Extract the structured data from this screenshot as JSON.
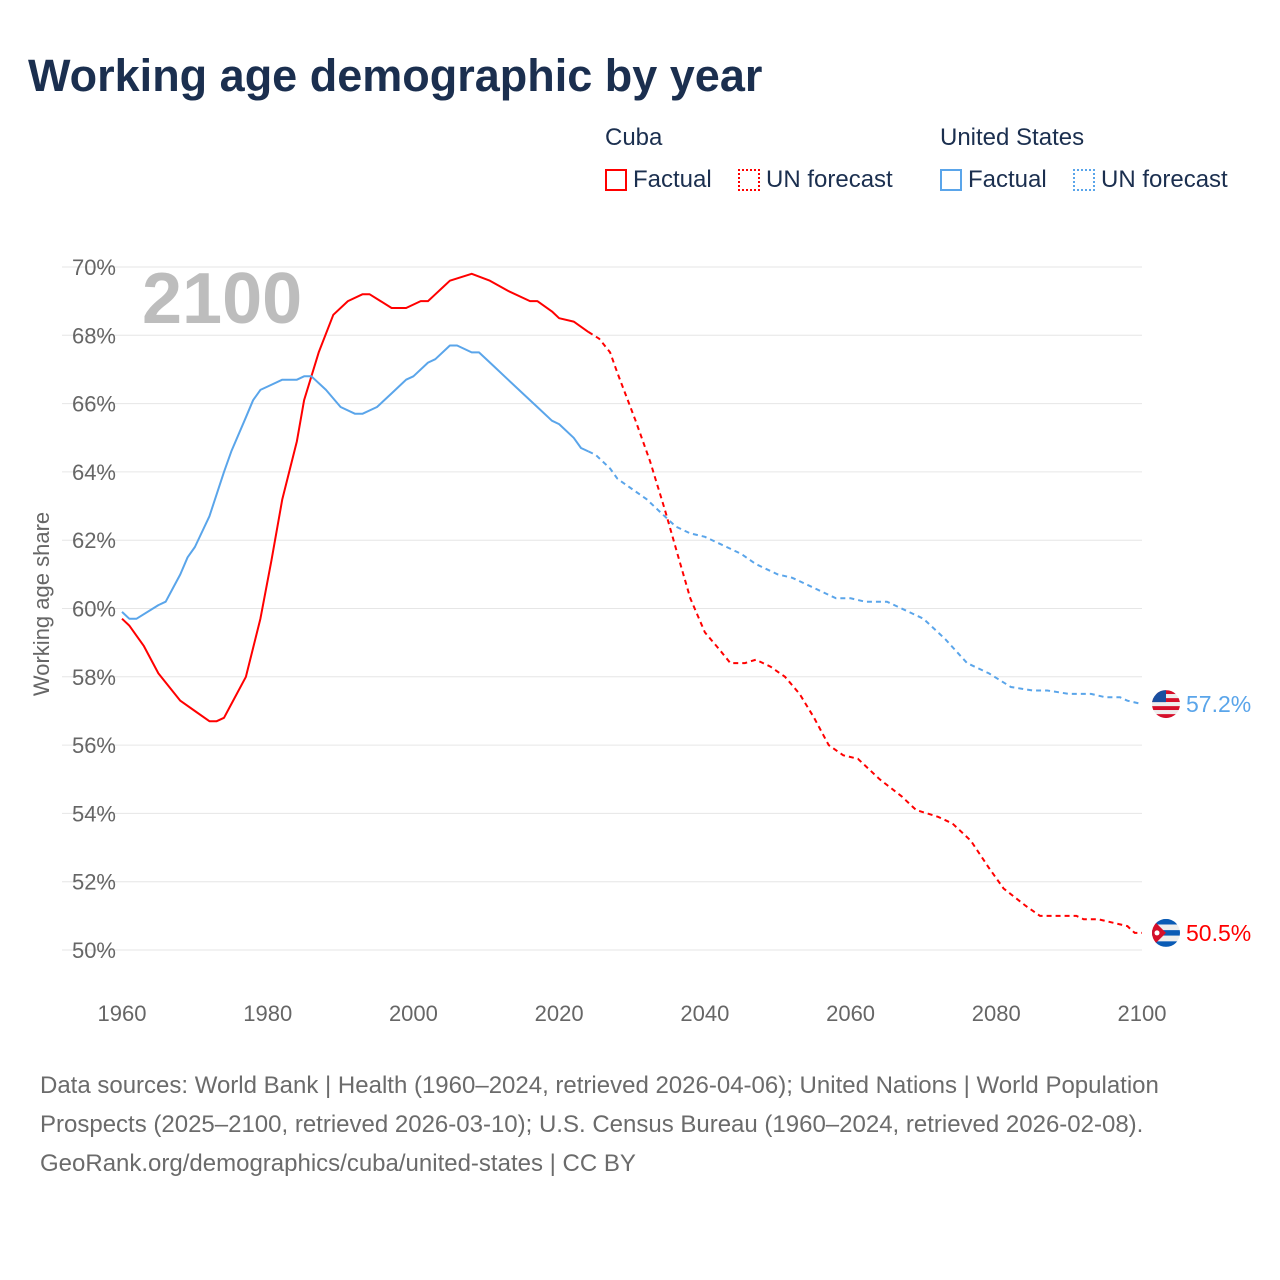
{
  "title": "Working age demographic by year",
  "legend": {
    "groups": [
      {
        "name": "Cuba",
        "factual": "Factual",
        "forecast": "UN forecast",
        "color": "#ff0000"
      },
      {
        "name": "United States",
        "factual": "Factual",
        "forecast": "UN forecast",
        "color": "#5aa5ea"
      }
    ]
  },
  "chart_data": {
    "type": "line",
    "title": "Working age demographic by year",
    "xlabel": "",
    "ylabel": "Working age share",
    "xlim": [
      1960,
      2100
    ],
    "ylim": [
      50,
      70
    ],
    "x_ticks": [
      "1960",
      "1980",
      "2000",
      "2020",
      "2040",
      "2060",
      "2080",
      "2100"
    ],
    "y_ticks": [
      "50%",
      "52%",
      "54%",
      "56%",
      "58%",
      "60%",
      "62%",
      "64%",
      "66%",
      "68%",
      "70%"
    ],
    "year_label": "2100",
    "grid": true,
    "series": [
      {
        "name": "Cuba",
        "color": "#ff0000",
        "end_label": "50.5%",
        "factual": [
          [
            1960,
            59.7
          ],
          [
            1961,
            59.5
          ],
          [
            1963,
            58.9
          ],
          [
            1965,
            58.1
          ],
          [
            1968,
            57.3
          ],
          [
            1970,
            57.0
          ],
          [
            1972,
            56.7
          ],
          [
            1973,
            56.7
          ],
          [
            1974,
            56.8
          ],
          [
            1975,
            57.2
          ],
          [
            1977,
            58.0
          ],
          [
            1979,
            59.7
          ],
          [
            1980.5,
            61.4
          ],
          [
            1982,
            63.2
          ],
          [
            1984,
            64.9
          ],
          [
            1985,
            66.1
          ],
          [
            1987,
            67.5
          ],
          [
            1989,
            68.6
          ],
          [
            1991,
            69.0
          ],
          [
            1993,
            69.2
          ],
          [
            1994,
            69.2
          ],
          [
            1995.5,
            69.0
          ],
          [
            1997,
            68.8
          ],
          [
            1999,
            68.8
          ],
          [
            2001,
            69.0
          ],
          [
            2002,
            69.0
          ],
          [
            2003,
            69.2
          ],
          [
            2004,
            69.4
          ],
          [
            2005,
            69.6
          ],
          [
            2008,
            69.8
          ],
          [
            2010.5,
            69.6
          ],
          [
            2013,
            69.3
          ],
          [
            2016,
            69.0
          ],
          [
            2017,
            69.0
          ],
          [
            2019,
            68.7
          ],
          [
            2020,
            68.5
          ],
          [
            2022,
            68.4
          ],
          [
            2024,
            68.1
          ]
        ],
        "forecast": [
          [
            2024,
            68.1
          ],
          [
            2025.5,
            67.9
          ],
          [
            2027,
            67.5
          ],
          [
            2028,
            66.9
          ],
          [
            2030.5,
            65.5
          ],
          [
            2032.5,
            64.3
          ],
          [
            2034.5,
            62.9
          ],
          [
            2036.5,
            61.4
          ],
          [
            2038,
            60.3
          ],
          [
            2040,
            59.3
          ],
          [
            2042,
            58.8
          ],
          [
            2043.5,
            58.4
          ],
          [
            2045.5,
            58.4
          ],
          [
            2047,
            58.5
          ],
          [
            2049,
            58.3
          ],
          [
            2051,
            58.0
          ],
          [
            2053,
            57.5
          ],
          [
            2055,
            56.8
          ],
          [
            2057,
            56.0
          ],
          [
            2059,
            55.7
          ],
          [
            2061,
            55.6
          ],
          [
            2064,
            55.0
          ],
          [
            2067,
            54.5
          ],
          [
            2069,
            54.1
          ],
          [
            2072,
            53.9
          ],
          [
            2074,
            53.7
          ],
          [
            2076.5,
            53.2
          ],
          [
            2079,
            52.4
          ],
          [
            2081,
            51.8
          ],
          [
            2084,
            51.3
          ],
          [
            2086,
            51.0
          ],
          [
            2091,
            51.0
          ],
          [
            2092,
            50.9
          ],
          [
            2094,
            50.9
          ],
          [
            2096,
            50.8
          ],
          [
            2098,
            50.7
          ],
          [
            2099,
            50.5
          ],
          [
            2100,
            50.5
          ]
        ]
      },
      {
        "name": "United States",
        "color": "#5aa5ea",
        "end_label": "57.2%",
        "factual": [
          [
            1960,
            59.9
          ],
          [
            1961,
            59.7
          ],
          [
            1962,
            59.7
          ],
          [
            1965,
            60.1
          ],
          [
            1966,
            60.2
          ],
          [
            1967,
            60.6
          ],
          [
            1968,
            61.0
          ],
          [
            1969,
            61.5
          ],
          [
            1970,
            61.8
          ],
          [
            1972,
            62.7
          ],
          [
            1974,
            64.0
          ],
          [
            1975,
            64.6
          ],
          [
            1977,
            65.6
          ],
          [
            1978,
            66.1
          ],
          [
            1979,
            66.4
          ],
          [
            1980,
            66.5
          ],
          [
            1982,
            66.7
          ],
          [
            1984,
            66.7
          ],
          [
            1985,
            66.8
          ],
          [
            1986,
            66.8
          ],
          [
            1988,
            66.4
          ],
          [
            1990,
            65.9
          ],
          [
            1992,
            65.7
          ],
          [
            1993,
            65.7
          ],
          [
            1995,
            65.9
          ],
          [
            1997,
            66.3
          ],
          [
            1999,
            66.7
          ],
          [
            2000,
            66.8
          ],
          [
            2002,
            67.2
          ],
          [
            2003,
            67.3
          ],
          [
            2005,
            67.7
          ],
          [
            2006,
            67.7
          ],
          [
            2008,
            67.5
          ],
          [
            2009,
            67.5
          ],
          [
            2011,
            67.1
          ],
          [
            2013,
            66.7
          ],
          [
            2015,
            66.3
          ],
          [
            2017,
            65.9
          ],
          [
            2019,
            65.5
          ],
          [
            2020,
            65.4
          ],
          [
            2022,
            65.0
          ],
          [
            2023,
            64.7
          ],
          [
            2024,
            64.6
          ]
        ],
        "forecast": [
          [
            2024,
            64.6
          ],
          [
            2025,
            64.5
          ],
          [
            2027,
            64.1
          ],
          [
            2028,
            63.8
          ],
          [
            2030,
            63.5
          ],
          [
            2032,
            63.2
          ],
          [
            2034,
            62.8
          ],
          [
            2036,
            62.4
          ],
          [
            2038,
            62.2
          ],
          [
            2040,
            62.1
          ],
          [
            2045,
            61.6
          ],
          [
            2047,
            61.3
          ],
          [
            2050,
            61.0
          ],
          [
            2052,
            60.9
          ],
          [
            2055,
            60.6
          ],
          [
            2058,
            60.3
          ],
          [
            2060,
            60.3
          ],
          [
            2062,
            60.2
          ],
          [
            2065,
            60.2
          ],
          [
            2068,
            59.9
          ],
          [
            2070,
            59.7
          ],
          [
            2073,
            59.1
          ],
          [
            2076,
            58.4
          ],
          [
            2079,
            58.1
          ],
          [
            2082,
            57.7
          ],
          [
            2085,
            57.6
          ],
          [
            2087,
            57.6
          ],
          [
            2090,
            57.5
          ],
          [
            2093,
            57.5
          ],
          [
            2095,
            57.4
          ],
          [
            2097,
            57.4
          ],
          [
            2098,
            57.3
          ],
          [
            2100,
            57.2
          ]
        ]
      }
    ]
  },
  "footer": {
    "sources": "Data sources: World Bank | Health (1960–2024, retrieved 2026-04-06); United Nations | World Population Prospects (2025–2100, retrieved 2026-03-10); U.S. Census Bureau (1960–2024, retrieved 2026-02-08).",
    "credit": "GeoRank.org/demographics/cuba/united-states | CC BY"
  }
}
